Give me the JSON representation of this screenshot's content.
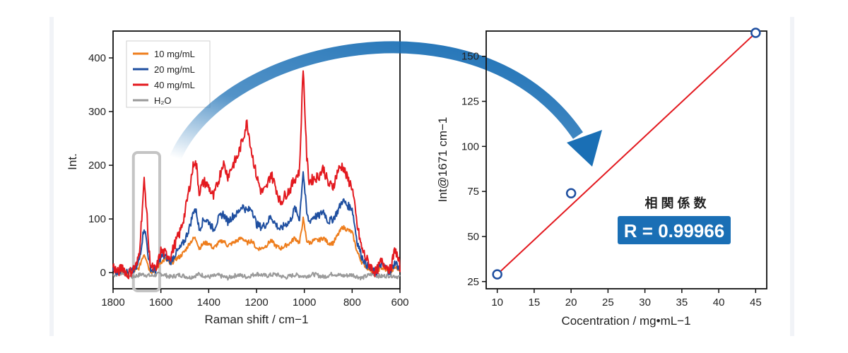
{
  "chart_data": [
    {
      "type": "line",
      "xlabel": "Raman shift / cm−1",
      "ylabel": "Int.",
      "xlim": [
        1800,
        600
      ],
      "ylim": [
        -30,
        450
      ],
      "x_ticks": [
        1800,
        1600,
        1400,
        1200,
        1000,
        800,
        600
      ],
      "y_ticks": [
        0,
        100,
        200,
        300,
        400
      ],
      "x_tick_labels": [
        "1800",
        "1600",
        "1400",
        "1200",
        "1000",
        "800",
        "600"
      ],
      "y_tick_labels": [
        "0",
        "100",
        "200",
        "300",
        "400"
      ],
      "legend_position": "top-left",
      "highlight_region": [
        1715,
        1605
      ],
      "series": [
        {
          "name": "10 mg/mL",
          "color": "#ee7d1c",
          "x": [
            1800,
            1780,
            1760,
            1740,
            1720,
            1700,
            1690,
            1680,
            1670,
            1660,
            1650,
            1640,
            1620,
            1600,
            1580,
            1560,
            1540,
            1520,
            1500,
            1480,
            1460,
            1450,
            1440,
            1420,
            1400,
            1380,
            1360,
            1340,
            1320,
            1300,
            1280,
            1260,
            1240,
            1220,
            1200,
            1180,
            1160,
            1140,
            1120,
            1100,
            1080,
            1060,
            1040,
            1020,
            1005,
            990,
            980,
            960,
            940,
            920,
            900,
            880,
            860,
            840,
            820,
            800,
            780,
            760,
            740,
            720,
            700,
            680,
            660,
            640,
            620,
            600
          ],
          "y": [
            5,
            0,
            5,
            0,
            2,
            5,
            10,
            25,
            35,
            25,
            8,
            2,
            5,
            20,
            25,
            15,
            25,
            30,
            40,
            55,
            65,
            60,
            45,
            55,
            55,
            45,
            55,
            60,
            50,
            55,
            60,
            65,
            55,
            60,
            45,
            45,
            50,
            60,
            50,
            45,
            50,
            55,
            65,
            55,
            100,
            60,
            55,
            60,
            60,
            65,
            55,
            55,
            70,
            85,
            80,
            75,
            40,
            20,
            10,
            5,
            0,
            10,
            5,
            0,
            10,
            5
          ]
        },
        {
          "name": "20 mg/mL",
          "color": "#1f4fa0",
          "x": [
            1800,
            1780,
            1760,
            1740,
            1720,
            1700,
            1690,
            1680,
            1670,
            1660,
            1650,
            1640,
            1620,
            1600,
            1580,
            1560,
            1540,
            1520,
            1500,
            1480,
            1460,
            1450,
            1440,
            1420,
            1400,
            1380,
            1360,
            1340,
            1320,
            1300,
            1280,
            1260,
            1240,
            1220,
            1200,
            1180,
            1160,
            1140,
            1120,
            1100,
            1080,
            1060,
            1040,
            1020,
            1005,
            990,
            980,
            960,
            940,
            920,
            900,
            880,
            860,
            840,
            820,
            800,
            780,
            760,
            740,
            720,
            700,
            680,
            660,
            640,
            620,
            600
          ],
          "y": [
            8,
            0,
            8,
            0,
            2,
            10,
            25,
            55,
            85,
            60,
            20,
            5,
            5,
            30,
            30,
            20,
            35,
            45,
            60,
            85,
            120,
            110,
            80,
            100,
            95,
            80,
            100,
            110,
            95,
            105,
            110,
            125,
            115,
            120,
            90,
            85,
            90,
            105,
            90,
            80,
            90,
            95,
            120,
            100,
            190,
            110,
            95,
            105,
            105,
            115,
            95,
            100,
            115,
            135,
            125,
            120,
            60,
            30,
            15,
            5,
            0,
            15,
            10,
            0,
            20,
            5
          ]
        },
        {
          "name": "40 mg/mL",
          "color": "#e3191f",
          "x": [
            1800,
            1780,
            1760,
            1740,
            1720,
            1700,
            1690,
            1680,
            1670,
            1660,
            1650,
            1640,
            1620,
            1600,
            1580,
            1560,
            1540,
            1520,
            1500,
            1480,
            1460,
            1450,
            1440,
            1420,
            1400,
            1380,
            1360,
            1340,
            1320,
            1300,
            1280,
            1260,
            1240,
            1220,
            1200,
            1180,
            1160,
            1140,
            1120,
            1100,
            1080,
            1060,
            1040,
            1020,
            1005,
            990,
            980,
            960,
            940,
            920,
            900,
            880,
            860,
            840,
            820,
            800,
            780,
            760,
            740,
            720,
            700,
            680,
            660,
            640,
            620,
            600
          ],
          "y": [
            12,
            0,
            12,
            -5,
            5,
            15,
            40,
            105,
            170,
            120,
            40,
            10,
            5,
            40,
            35,
            30,
            55,
            75,
            110,
            160,
            210,
            195,
            150,
            170,
            160,
            140,
            170,
            205,
            180,
            200,
            215,
            245,
            280,
            225,
            180,
            150,
            155,
            185,
            160,
            130,
            145,
            155,
            175,
            190,
            385,
            215,
            170,
            175,
            180,
            195,
            165,
            160,
            190,
            200,
            175,
            160,
            90,
            45,
            25,
            10,
            0,
            20,
            15,
            5,
            45,
            10
          ]
        },
        {
          "name": "H₂O",
          "color": "#9a9a9a",
          "x": [
            1800,
            1760,
            1720,
            1680,
            1640,
            1600,
            1560,
            1520,
            1480,
            1440,
            1400,
            1360,
            1320,
            1280,
            1240,
            1200,
            1160,
            1120,
            1080,
            1040,
            1000,
            960,
            920,
            880,
            840,
            800,
            760,
            720,
            680,
            640,
            600
          ],
          "y": [
            -5,
            0,
            -8,
            -3,
            -6,
            -2,
            -8,
            -4,
            -9,
            -3,
            -8,
            -5,
            -10,
            -4,
            -8,
            -2,
            -6,
            -3,
            -9,
            -4,
            -7,
            -3,
            -8,
            -2,
            -6,
            -4,
            -10,
            -3,
            -7,
            -5,
            -8
          ]
        }
      ]
    },
    {
      "type": "scatter",
      "xlabel": "Cocentration / mg•mL−1",
      "ylabel": "Int@1671 cm−1",
      "xlim": [
        8.5,
        46.5
      ],
      "ylim": [
        21,
        164
      ],
      "x_ticks": [
        10,
        15,
        20,
        25,
        30,
        35,
        40,
        45
      ],
      "y_ticks": [
        25,
        50,
        75,
        100,
        125,
        150
      ],
      "x_tick_labels": [
        "10",
        "15",
        "20",
        "25",
        "30",
        "35",
        "40",
        "45"
      ],
      "y_tick_labels": [
        "25",
        "50",
        "75",
        "100",
        "125",
        "150"
      ],
      "points": {
        "x": [
          10,
          20,
          45
        ],
        "y": [
          29,
          74,
          163
        ]
      },
      "fit_line": {
        "x": [
          10,
          45
        ],
        "y": [
          29,
          163
        ],
        "color": "#e3191f"
      },
      "marker_color": "#1f4fa0",
      "annotation": {
        "label": "相 関 係 数",
        "value": "R = 0.99966",
        "box_color": "#1a6fb5"
      }
    }
  ],
  "arrow_color": "#1a6fb5",
  "highlight_color": "#c4c4c4"
}
